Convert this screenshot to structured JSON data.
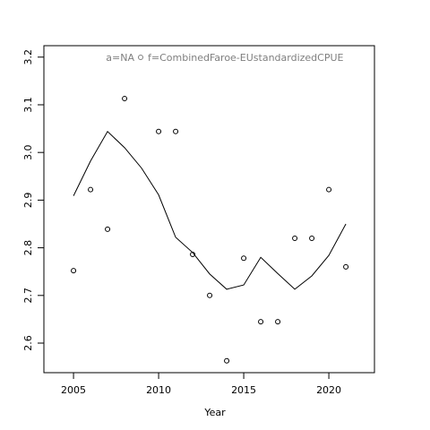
{
  "chart_data": {
    "type": "scatter",
    "xlabel": "Year",
    "annotations": [
      "a=NA",
      "f=CombinedFaroe-EUstandardizedCPUE"
    ],
    "x": [
      2005,
      2006,
      2007,
      2008,
      2009,
      2010,
      2011,
      2012,
      2013,
      2014,
      2015,
      2016,
      2017,
      2018,
      2019,
      2020,
      2021
    ],
    "series": [
      {
        "style": "points",
        "color": "#000000",
        "values": [
          2.752,
          2.922,
          2.839,
          3.113,
          null,
          3.044,
          3.044,
          2.786,
          2.7,
          2.563,
          2.778,
          2.645,
          2.645,
          2.82,
          2.82,
          2.922,
          2.76
        ]
      },
      {
        "style": "line",
        "color": "#000000",
        "values": [
          2.909,
          2.982,
          3.044,
          3.01,
          2.967,
          2.911,
          2.822,
          2.79,
          2.745,
          2.713,
          2.722,
          2.78,
          2.746,
          2.713,
          2.741,
          2.784,
          2.85
        ]
      }
    ],
    "xlim": [
      2003.26,
      2022.68
    ],
    "ylim": [
      2.538,
      3.224
    ],
    "xticks": [
      2005,
      2010,
      2015,
      2020
    ],
    "yticks": [
      2.6,
      2.7,
      2.8,
      2.9,
      {
        "value": 3,
        "label": "3.0"
      },
      3.1,
      3.2
    ],
    "grid": false
  }
}
